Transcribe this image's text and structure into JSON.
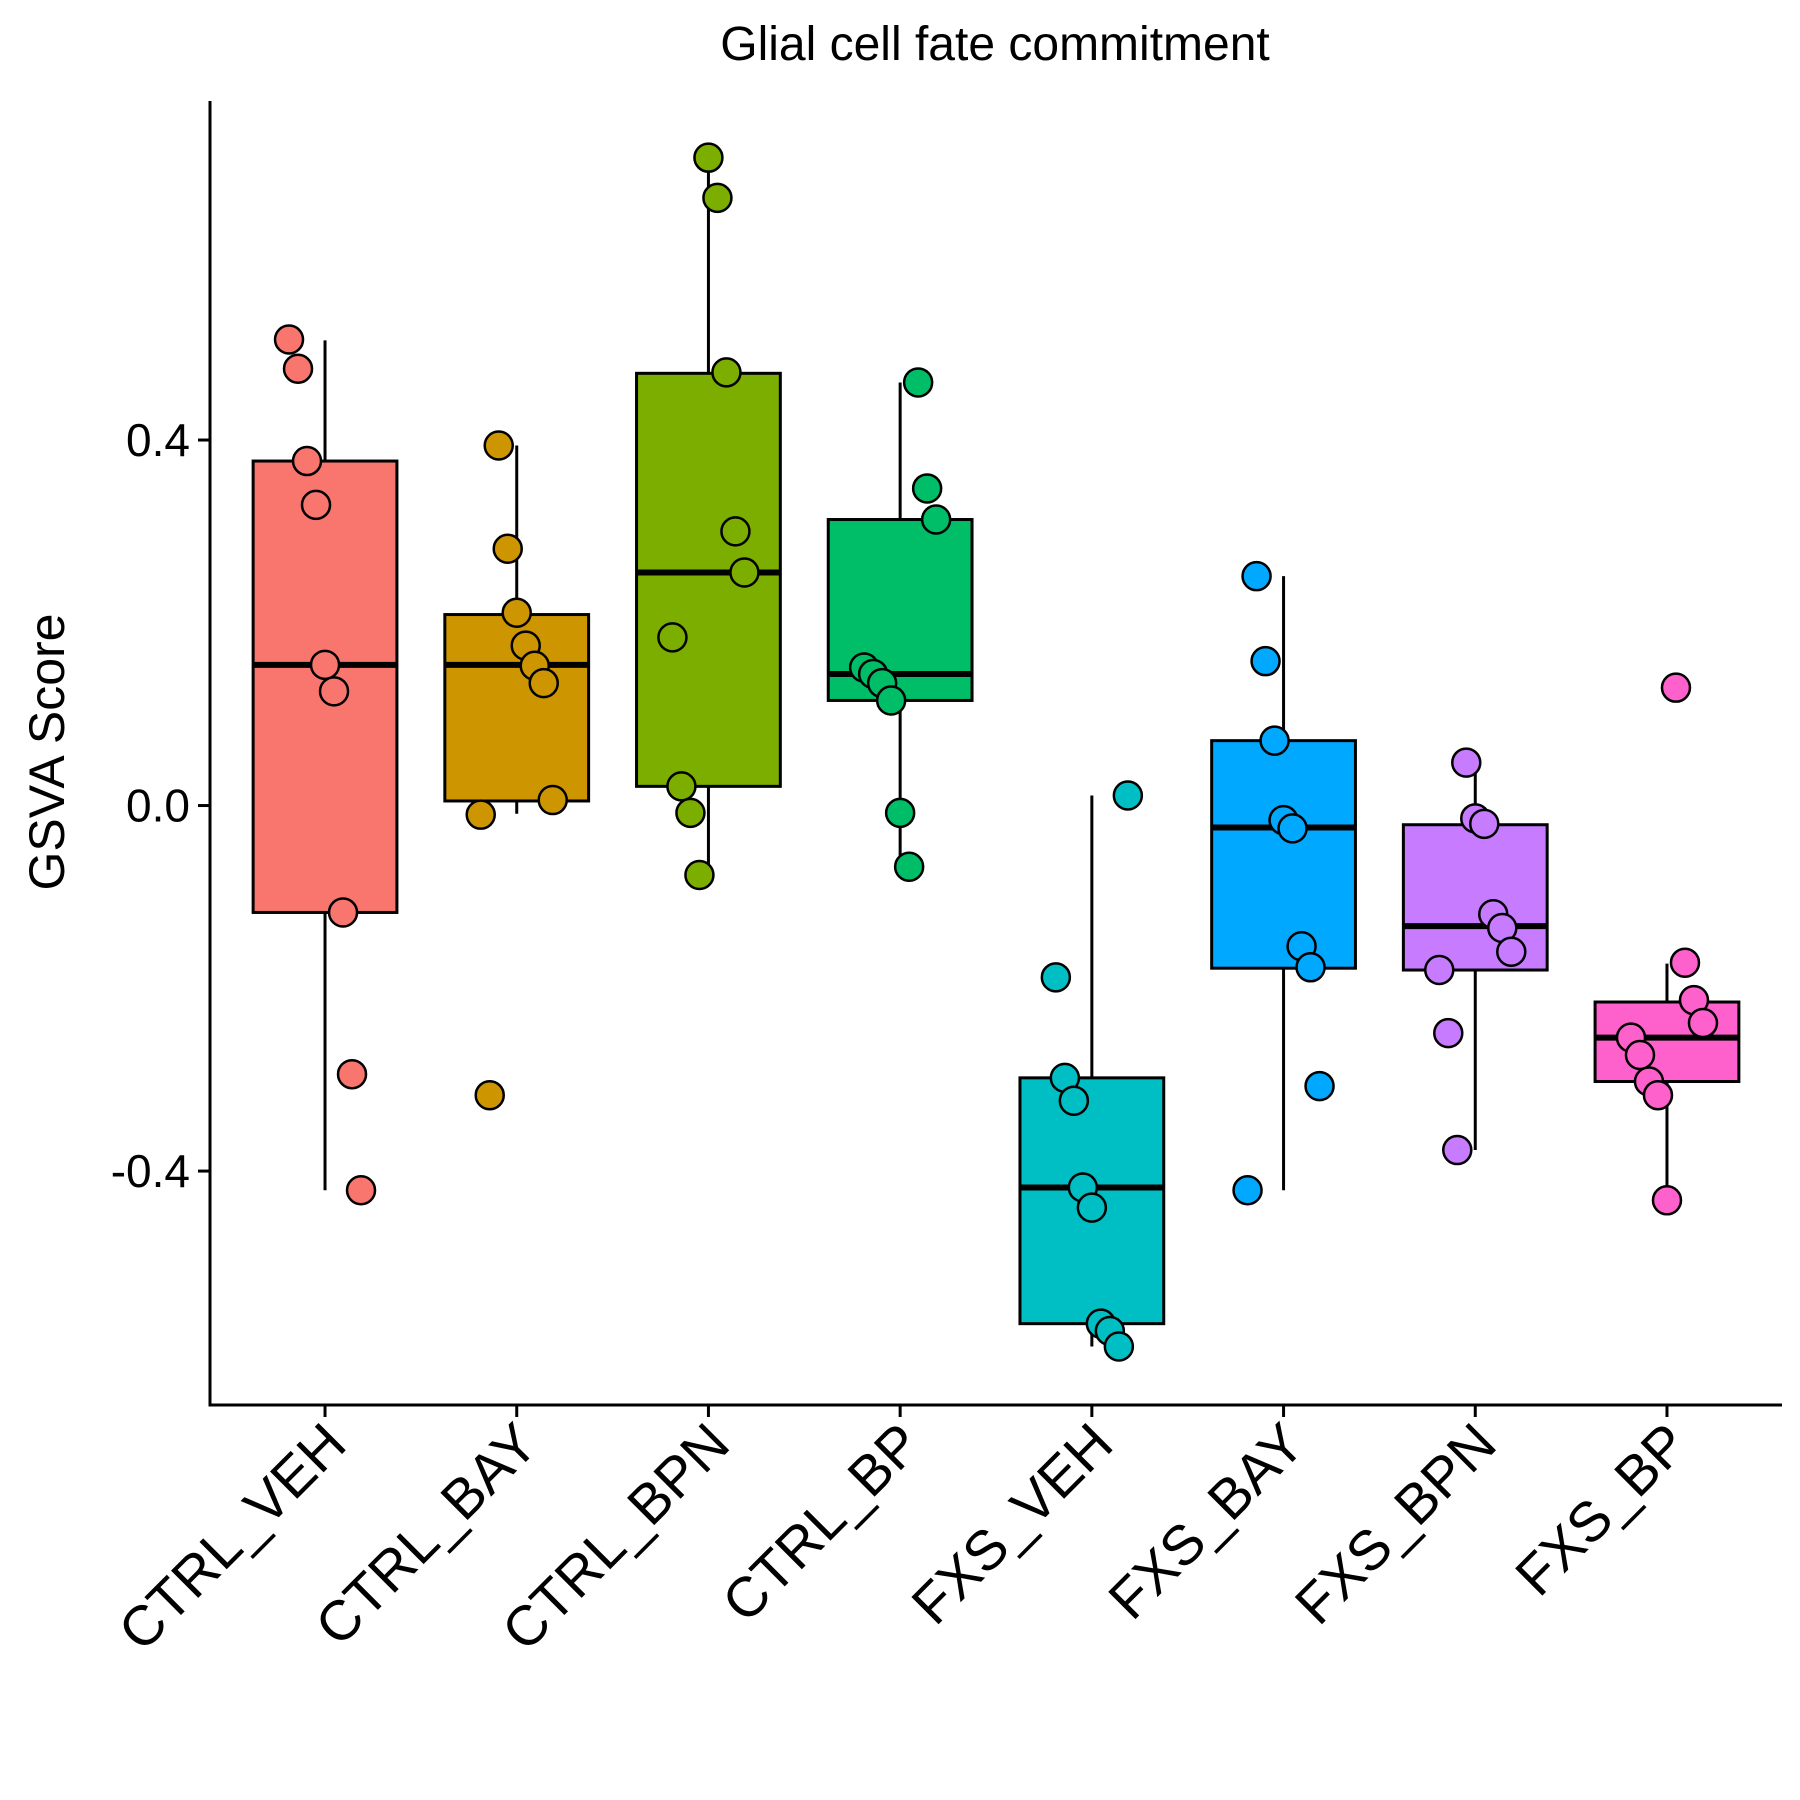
{
  "chart_data": {
    "type": "box",
    "title": "Glial cell fate commitment",
    "y_label": "GSVA Score",
    "ylim": [
      -0.656,
      0.771
    ],
    "yticks": [
      -0.4,
      {
        "value": 0,
        "label": "0.0"
      },
      0.4
    ],
    "groups": [
      {
        "name": "CTRL_VEH",
        "color": "#F8766D",
        "whisker_low": -0.421,
        "q1": -0.117,
        "median": 0.154,
        "q3": 0.377,
        "whisker_high": 0.509,
        "points": [
          0.51,
          0.478,
          0.377,
          0.329,
          0.154,
          0.125,
          -0.117,
          -0.294,
          -0.421
        ]
      },
      {
        "name": "CTRL_BAY",
        "color": "#CD9600",
        "whisker_low": -0.009,
        "q1": 0.005,
        "median": 0.154,
        "q3": 0.209,
        "whisker_high": 0.394,
        "points": [
          0.394,
          0.281,
          0.211,
          0.175,
          0.153,
          0.134,
          0.006,
          -0.01,
          -0.317
        ]
      },
      {
        "name": "CTRL_BPN",
        "color": "#7CAE00",
        "whisker_low": -0.073,
        "q1": 0.021,
        "median": 0.255,
        "q3": 0.473,
        "whisker_high": 0.709,
        "points": [
          0.709,
          0.665,
          0.474,
          0.3,
          0.255,
          0.184,
          0.021,
          -0.008,
          -0.076
        ]
      },
      {
        "name": "CTRL_BP",
        "color": "#00BE67",
        "whisker_low": -0.067,
        "q1": 0.115,
        "median": 0.144,
        "q3": 0.313,
        "whisker_high": 0.463,
        "points": [
          0.463,
          0.347,
          0.313,
          0.151,
          0.144,
          0.134,
          0.115,
          -0.008,
          -0.067
        ]
      },
      {
        "name": "FXS_VEH",
        "color": "#00BFC4",
        "whisker_low": -0.592,
        "q1": -0.567,
        "median": -0.418,
        "q3": -0.298,
        "whisker_high": 0.011,
        "points": [
          0.011,
          -0.188,
          -0.298,
          -0.323,
          -0.418,
          -0.44,
          -0.567,
          -0.575,
          -0.592
        ]
      },
      {
        "name": "FXS_BAY",
        "color": "#00A9FF",
        "whisker_low": -0.421,
        "q1": -0.178,
        "median": -0.024,
        "q3": 0.071,
        "whisker_high": 0.251,
        "points": [
          0.251,
          0.158,
          0.071,
          -0.016,
          -0.025,
          -0.154,
          -0.177,
          -0.307,
          -0.421
        ]
      },
      {
        "name": "FXS_BPN",
        "color": "#C77CFF",
        "whisker_low": -0.377,
        "q1": -0.18,
        "median": -0.132,
        "q3": -0.021,
        "whisker_high": 0.044,
        "points": [
          0.047,
          -0.014,
          -0.02,
          -0.119,
          -0.134,
          -0.16,
          -0.18,
          -0.249,
          -0.377
        ]
      },
      {
        "name": "FXS_BP",
        "color": "#FF61CC",
        "whisker_low": -0.43,
        "q1": -0.302,
        "median": -0.254,
        "q3": -0.215,
        "whisker_high": -0.173,
        "points": [
          0.129,
          -0.172,
          -0.213,
          -0.238,
          -0.254,
          -0.273,
          -0.302,
          -0.317,
          -0.432
        ]
      }
    ]
  }
}
